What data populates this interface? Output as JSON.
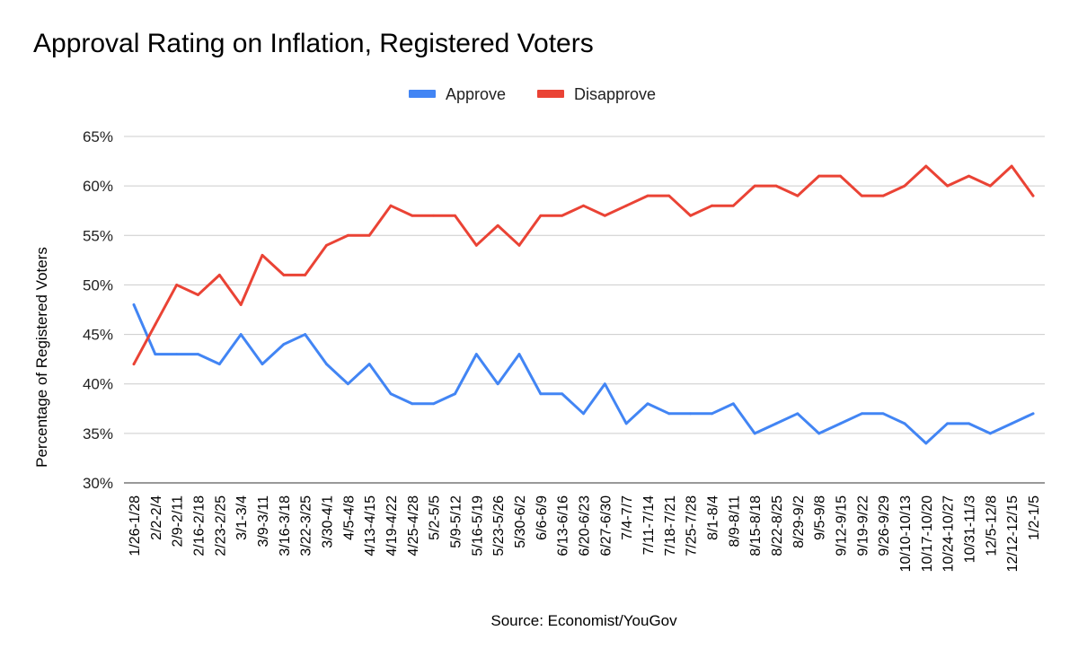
{
  "chart_data": {
    "type": "line",
    "title": "Approval Rating on Inflation, Registered Voters",
    "xlabel": "",
    "ylabel": "Percentage of Registered Voters",
    "source": "Source: Economist/YouGov",
    "ylim": [
      30,
      65
    ],
    "yticks": [
      30,
      35,
      40,
      45,
      50,
      55,
      60,
      65
    ],
    "ytick_suffix": "%",
    "grid": true,
    "legend_position": "top-center",
    "categories": [
      "1/26-1/28",
      "2/2-2/4",
      "2/9-2/11",
      "2/16-2/18",
      "2/23-2/25",
      "3/1-3/4",
      "3/9-3/11",
      "3/16-3/18",
      "3/22-3/25",
      "3/30-4/1",
      "4/5-4/8",
      "4/13-4/15",
      "4/19-4/22",
      "4/25-4/28",
      "5/2-5/5",
      "5/9-5/12",
      "5/16-5/19",
      "5/23-5/26",
      "5/30-6/2",
      "6/6-6/9",
      "6/13-6/16",
      "6/20-6/23",
      "6/27-6/30",
      "7/4-7/7",
      "7/11-7/14",
      "7/18-7/21",
      "7/25-7/28",
      "8/1-8/4",
      "8/9-8/11",
      "8/15-8/18",
      "8/22-8/25",
      "8/29-9/2",
      "9/5-9/8",
      "9/12-9/15",
      "9/19-9/22",
      "9/26-9/29",
      "10/10-10/13",
      "10/17-10/20",
      "10/24-10/27",
      "10/31-11/3",
      "12/5-12/8",
      "12/12-12/15",
      "1/2-1/5"
    ],
    "series": [
      {
        "name": "Approve",
        "color": "#4285f4",
        "values": [
          48,
          43,
          43,
          43,
          42,
          45,
          42,
          44,
          45,
          42,
          40,
          42,
          39,
          38,
          38,
          39,
          43,
          40,
          43,
          39,
          39,
          37,
          40,
          36,
          38,
          37,
          37,
          37,
          38,
          35,
          36,
          37,
          35,
          36,
          37,
          37,
          36,
          34,
          36,
          36,
          35,
          36,
          37
        ]
      },
      {
        "name": "Disapprove",
        "color": "#ea4335",
        "values": [
          42,
          46,
          50,
          49,
          51,
          48,
          53,
          51,
          51,
          54,
          55,
          55,
          58,
          57,
          57,
          57,
          54,
          56,
          54,
          57,
          57,
          58,
          57,
          58,
          59,
          59,
          57,
          58,
          58,
          60,
          60,
          59,
          61,
          61,
          59,
          59,
          60,
          62,
          60,
          61,
          60,
          62,
          59
        ]
      }
    ]
  }
}
